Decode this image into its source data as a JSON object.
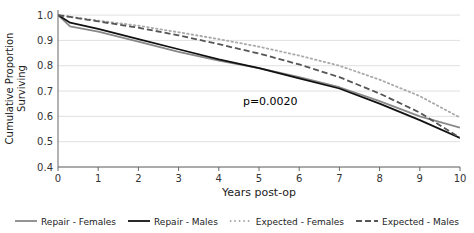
{
  "chart_data": {
    "type": "line",
    "ylabel": "Cumulative Proportion\nSurviving",
    "xlabel": "Years post-op",
    "xlim": [
      0,
      10
    ],
    "ylim": [
      0.4,
      1.02
    ],
    "xticks": [
      0,
      1,
      2,
      3,
      4,
      5,
      6,
      7,
      8,
      9,
      10
    ],
    "yticks": [
      0.4,
      0.5,
      0.6,
      0.7,
      0.8,
      0.9,
      {
        "value": 1.0,
        "label": "1.0"
      }
    ],
    "grid": true,
    "legend": "bottom",
    "annotations": [
      {
        "text": "p=0.0020",
        "x": 4.6,
        "y": 0.645
      }
    ],
    "series": [
      {
        "name": "Repair - Females",
        "color": "#888888",
        "line_style": "solid",
        "x": [
          0,
          0.3,
          1,
          2,
          3,
          4,
          5,
          6,
          7,
          8,
          9,
          10
        ],
        "values": [
          1.0,
          0.955,
          0.935,
          0.895,
          0.855,
          0.82,
          0.79,
          0.755,
          0.715,
          0.66,
          0.6,
          0.555
        ]
      },
      {
        "name": "Repair - Males",
        "color": "#111111",
        "line_style": "solid",
        "x": [
          0,
          0.3,
          1,
          2,
          3,
          4,
          5,
          6,
          7,
          8,
          9,
          10
        ],
        "values": [
          1.0,
          0.97,
          0.945,
          0.905,
          0.865,
          0.825,
          0.79,
          0.75,
          0.71,
          0.65,
          0.585,
          0.515
        ]
      },
      {
        "name": "Expected - Females",
        "color": "#aaaaaa",
        "line_style": "dotted",
        "x": [
          0,
          1,
          2,
          3,
          4,
          5,
          6,
          7,
          8,
          9,
          10
        ],
        "values": [
          1.0,
          0.978,
          0.958,
          0.932,
          0.905,
          0.875,
          0.84,
          0.8,
          0.745,
          0.68,
          0.595
        ]
      },
      {
        "name": "Expected - Males",
        "color": "#555555",
        "line_style": "dashed",
        "x": [
          0,
          1,
          2,
          3,
          4,
          5,
          6,
          7,
          8,
          9,
          10
        ],
        "values": [
          1.0,
          0.975,
          0.95,
          0.92,
          0.885,
          0.848,
          0.805,
          0.755,
          0.69,
          0.615,
          0.515
        ]
      }
    ]
  }
}
